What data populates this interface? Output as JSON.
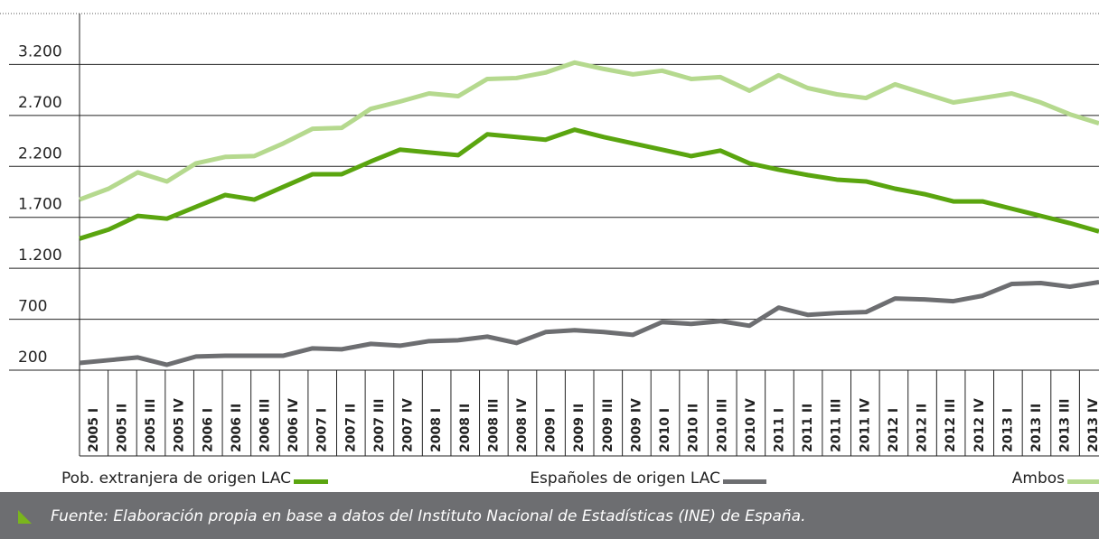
{
  "chart_data": {
    "type": "line",
    "categories": [
      "2005 I",
      "2005 II",
      "2005 III",
      "2005 IV",
      "2006 I",
      "2006 II",
      "2006 III",
      "2006 IV",
      "2007 I",
      "2007 II",
      "2007 III",
      "2007 IV",
      "2008 I",
      "2008 II",
      "2008 III",
      "2008 IV",
      "2009 I",
      "2009 II",
      "2009 III",
      "2009 IV",
      "2010 I",
      "2010 II",
      "2010 III",
      "2010 IV",
      "2011 I",
      "2011 II",
      "2011 III",
      "2011 IV",
      "2012 I",
      "2012 II",
      "2012 III",
      "2012 IV",
      "2013 I",
      "2013 II",
      "2013 III",
      "2013 IV"
    ],
    "series": [
      {
        "name": "Pob. extranjera de origen LAC",
        "color": "#5aa50f",
        "values": [
          1491,
          1580,
          1714,
          1687,
          1803,
          1919,
          1874,
          1999,
          2123,
          2123,
          2248,
          2364,
          2337,
          2310,
          2515,
          2488,
          2462,
          2560,
          2488,
          2426,
          2364,
          2301,
          2355,
          2230,
          2168,
          2115,
          2070,
          2052,
          1981,
          1928,
          1856,
          1856,
          1785,
          1714,
          1643,
          1562
        ]
      },
      {
        "name": "Españoles de origen LAC",
        "color": "#6d6e71",
        "values": [
          271,
          298,
          325,
          253,
          334,
          342,
          342,
          342,
          414,
          405,
          458,
          440,
          485,
          494,
          529,
          467,
          574,
          592,
          574,
          547,
          672,
          654,
          681,
          636,
          814,
          743,
          761,
          770,
          903,
          894,
          877,
          930,
          1046,
          1055,
          1019,
          1064
        ]
      },
      {
        "name": "Ambos",
        "color": "#b5d98e",
        "values": [
          1874,
          1981,
          2141,
          2052,
          2230,
          2293,
          2301,
          2426,
          2569,
          2578,
          2765,
          2836,
          2916,
          2889,
          3058,
          3067,
          3121,
          3219,
          3156,
          3103,
          3139,
          3058,
          3076,
          2943,
          3094,
          2969,
          2907,
          2871,
          3005,
          2916,
          2827,
          2871,
          2916,
          2827,
          2711,
          2622
        ]
      }
    ],
    "ylim": [
      200,
      3700
    ],
    "yticks": [
      200,
      700,
      {
        "value": 1200,
        "label": "1.200"
      },
      {
        "value": 1700,
        "label": "1.700"
      },
      {
        "value": 2200,
        "label": "2.200"
      },
      {
        "value": 2700,
        "label": "2.700"
      },
      {
        "value": 3200,
        "label": "3.200"
      }
    ],
    "grid": true,
    "source": "Fuente: Elaboración propia en base a datos del Instituto Nacional de Estadísticas (INE) de España."
  }
}
